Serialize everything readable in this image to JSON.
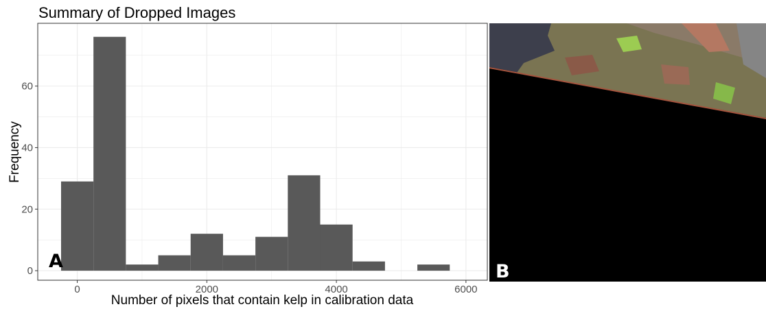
{
  "chart_data": {
    "type": "bar",
    "title": "Summary of Dropped Images",
    "xlabel": "Number of pixels that contain kelp in calibration data",
    "ylabel": "Frequency",
    "bin_width": 500,
    "bins": [
      {
        "start": -250,
        "end": 250,
        "count": 29
      },
      {
        "start": 250,
        "end": 750,
        "count": 76
      },
      {
        "start": 750,
        "end": 1250,
        "count": 2
      },
      {
        "start": 1250,
        "end": 1750,
        "count": 5
      },
      {
        "start": 1750,
        "end": 2250,
        "count": 12
      },
      {
        "start": 2250,
        "end": 2750,
        "count": 5
      },
      {
        "start": 2750,
        "end": 3250,
        "count": 11
      },
      {
        "start": 3250,
        "end": 3750,
        "count": 31
      },
      {
        "start": 3750,
        "end": 4250,
        "count": 15
      },
      {
        "start": 4250,
        "end": 4750,
        "count": 3
      },
      {
        "start": 5250,
        "end": 5750,
        "count": 2
      }
    ],
    "xlim": [
      -610,
      6330
    ],
    "ylim": [
      -3.1,
      80.4
    ],
    "x_ticks": [
      0,
      2000,
      4000,
      6000
    ],
    "x_tick_labels": [
      "0",
      "2000",
      "4000",
      "6000"
    ],
    "y_ticks": [
      0,
      20,
      40,
      60
    ],
    "y_tick_labels": [
      "0",
      "20",
      "40",
      "60"
    ],
    "grid": true,
    "bar_color": "#595959",
    "grid_color": "#ebebeb",
    "panel_border_color": "#333333"
  },
  "panels": {
    "left_label": "A",
    "right_label": "B"
  },
  "satellite_image": {
    "description": "true-color satellite tile of coastline, lower portion is no-data (black) fill",
    "nodata_color": "#000000",
    "water_color": "#3d3f4c",
    "land_color": "#7a7452"
  }
}
